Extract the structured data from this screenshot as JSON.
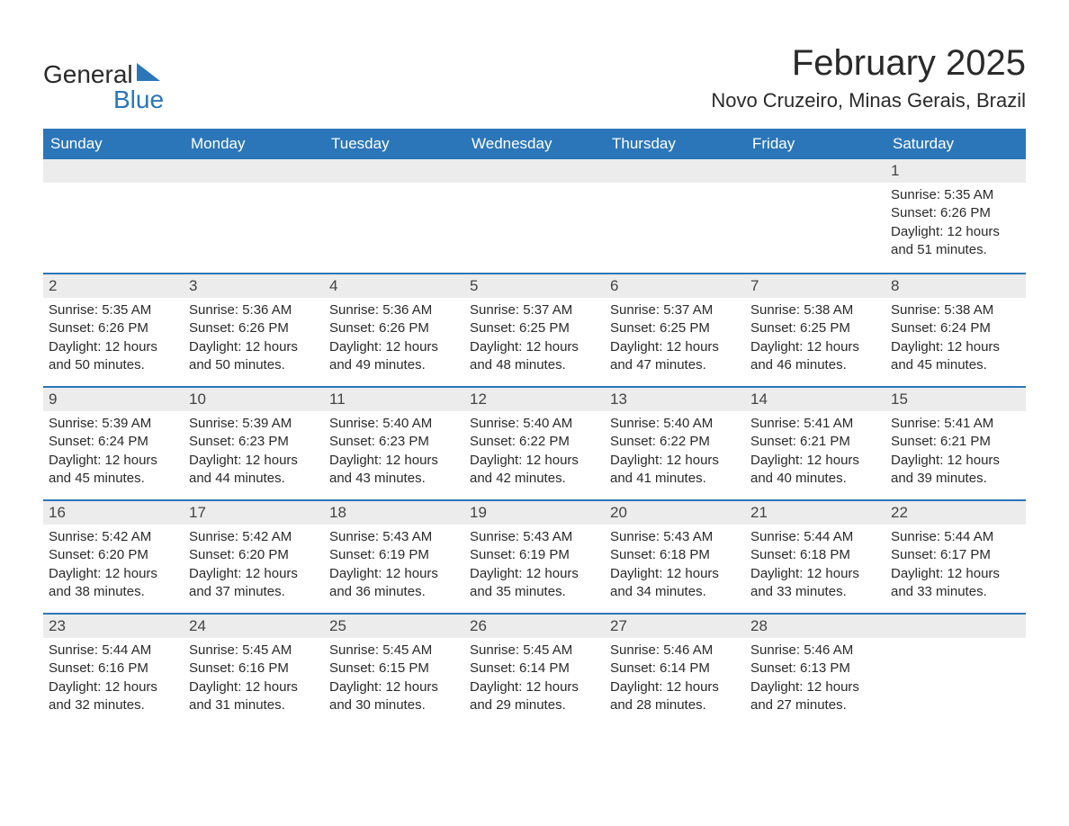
{
  "logo": {
    "text_general": "General",
    "text_blue": "Blue",
    "blue_hex": "#2b76b9"
  },
  "title": "February 2025",
  "location": "Novo Cruzeiro, Minas Gerais, Brazil",
  "colors": {
    "header_bg": "#2b76b9",
    "header_text": "#ffffff",
    "daynum_bg": "#ececec",
    "row_border": "#2b76b9",
    "body_text": "#2a2a2a",
    "background": "#ffffff"
  },
  "fonts": {
    "title_size_pt": 30,
    "location_size_pt": 17,
    "header_size_pt": 13,
    "cell_size_pt": 11
  },
  "weekdays": [
    "Sunday",
    "Monday",
    "Tuesday",
    "Wednesday",
    "Thursday",
    "Friday",
    "Saturday"
  ],
  "start_weekday_index": 6,
  "days": [
    {
      "n": 1,
      "sunrise": "5:35 AM",
      "sunset": "6:26 PM",
      "daylight": "12 hours and 51 minutes."
    },
    {
      "n": 2,
      "sunrise": "5:35 AM",
      "sunset": "6:26 PM",
      "daylight": "12 hours and 50 minutes."
    },
    {
      "n": 3,
      "sunrise": "5:36 AM",
      "sunset": "6:26 PM",
      "daylight": "12 hours and 50 minutes."
    },
    {
      "n": 4,
      "sunrise": "5:36 AM",
      "sunset": "6:26 PM",
      "daylight": "12 hours and 49 minutes."
    },
    {
      "n": 5,
      "sunrise": "5:37 AM",
      "sunset": "6:25 PM",
      "daylight": "12 hours and 48 minutes."
    },
    {
      "n": 6,
      "sunrise": "5:37 AM",
      "sunset": "6:25 PM",
      "daylight": "12 hours and 47 minutes."
    },
    {
      "n": 7,
      "sunrise": "5:38 AM",
      "sunset": "6:25 PM",
      "daylight": "12 hours and 46 minutes."
    },
    {
      "n": 8,
      "sunrise": "5:38 AM",
      "sunset": "6:24 PM",
      "daylight": "12 hours and 45 minutes."
    },
    {
      "n": 9,
      "sunrise": "5:39 AM",
      "sunset": "6:24 PM",
      "daylight": "12 hours and 45 minutes."
    },
    {
      "n": 10,
      "sunrise": "5:39 AM",
      "sunset": "6:23 PM",
      "daylight": "12 hours and 44 minutes."
    },
    {
      "n": 11,
      "sunrise": "5:40 AM",
      "sunset": "6:23 PM",
      "daylight": "12 hours and 43 minutes."
    },
    {
      "n": 12,
      "sunrise": "5:40 AM",
      "sunset": "6:22 PM",
      "daylight": "12 hours and 42 minutes."
    },
    {
      "n": 13,
      "sunrise": "5:40 AM",
      "sunset": "6:22 PM",
      "daylight": "12 hours and 41 minutes."
    },
    {
      "n": 14,
      "sunrise": "5:41 AM",
      "sunset": "6:21 PM",
      "daylight": "12 hours and 40 minutes."
    },
    {
      "n": 15,
      "sunrise": "5:41 AM",
      "sunset": "6:21 PM",
      "daylight": "12 hours and 39 minutes."
    },
    {
      "n": 16,
      "sunrise": "5:42 AM",
      "sunset": "6:20 PM",
      "daylight": "12 hours and 38 minutes."
    },
    {
      "n": 17,
      "sunrise": "5:42 AM",
      "sunset": "6:20 PM",
      "daylight": "12 hours and 37 minutes."
    },
    {
      "n": 18,
      "sunrise": "5:43 AM",
      "sunset": "6:19 PM",
      "daylight": "12 hours and 36 minutes."
    },
    {
      "n": 19,
      "sunrise": "5:43 AM",
      "sunset": "6:19 PM",
      "daylight": "12 hours and 35 minutes."
    },
    {
      "n": 20,
      "sunrise": "5:43 AM",
      "sunset": "6:18 PM",
      "daylight": "12 hours and 34 minutes."
    },
    {
      "n": 21,
      "sunrise": "5:44 AM",
      "sunset": "6:18 PM",
      "daylight": "12 hours and 33 minutes."
    },
    {
      "n": 22,
      "sunrise": "5:44 AM",
      "sunset": "6:17 PM",
      "daylight": "12 hours and 33 minutes."
    },
    {
      "n": 23,
      "sunrise": "5:44 AM",
      "sunset": "6:16 PM",
      "daylight": "12 hours and 32 minutes."
    },
    {
      "n": 24,
      "sunrise": "5:45 AM",
      "sunset": "6:16 PM",
      "daylight": "12 hours and 31 minutes."
    },
    {
      "n": 25,
      "sunrise": "5:45 AM",
      "sunset": "6:15 PM",
      "daylight": "12 hours and 30 minutes."
    },
    {
      "n": 26,
      "sunrise": "5:45 AM",
      "sunset": "6:14 PM",
      "daylight": "12 hours and 29 minutes."
    },
    {
      "n": 27,
      "sunrise": "5:46 AM",
      "sunset": "6:14 PM",
      "daylight": "12 hours and 28 minutes."
    },
    {
      "n": 28,
      "sunrise": "5:46 AM",
      "sunset": "6:13 PM",
      "daylight": "12 hours and 27 minutes."
    }
  ],
  "labels": {
    "sunrise": "Sunrise:",
    "sunset": "Sunset:",
    "daylight": "Daylight:"
  }
}
